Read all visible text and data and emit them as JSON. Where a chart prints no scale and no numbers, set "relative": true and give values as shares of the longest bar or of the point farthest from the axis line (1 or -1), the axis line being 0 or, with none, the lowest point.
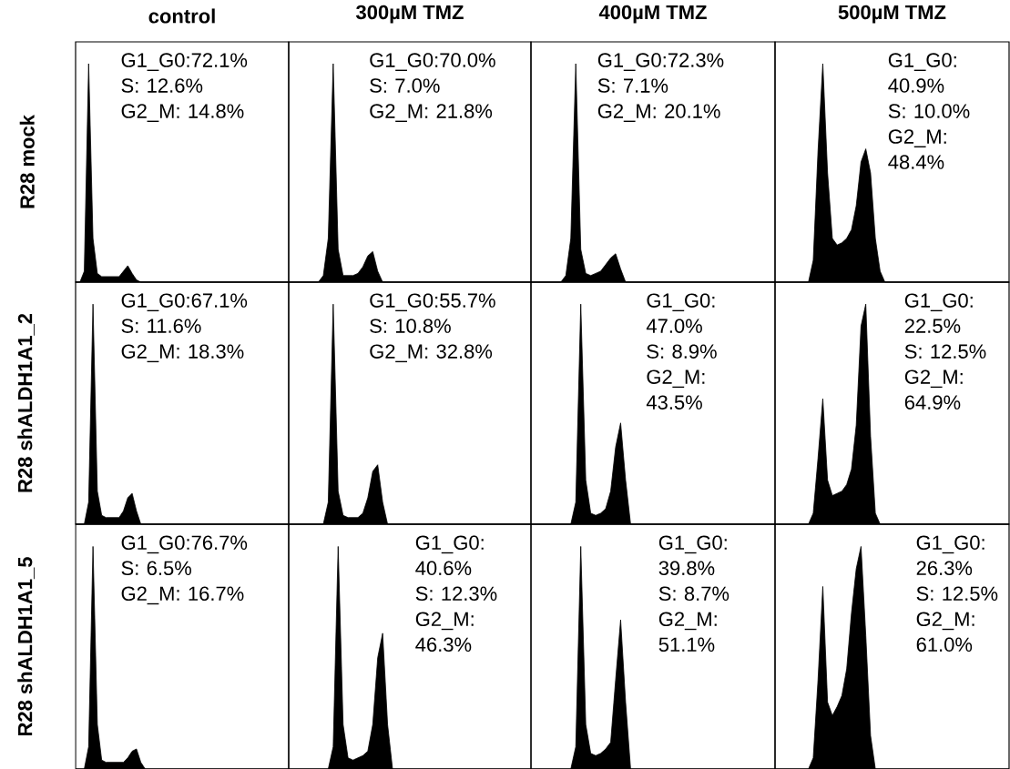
{
  "chart_data": [
    {
      "type": "area",
      "relative": true,
      "title": "control",
      "ylabel": "R28 mock",
      "color": "#000000",
      "categories": [
        null,
        null,
        null,
        null,
        null,
        null,
        null,
        null,
        null,
        null,
        null,
        null,
        null,
        null,
        null,
        null,
        null,
        null,
        null,
        null,
        null,
        null,
        null,
        null,
        null,
        null,
        null,
        null,
        null,
        null,
        null,
        null,
        null,
        null,
        null,
        null,
        null,
        null,
        null,
        null,
        null,
        null,
        null,
        null,
        null,
        null,
        null,
        null,
        null,
        null
      ],
      "values": [
        0,
        0,
        0.05,
        1,
        0.2,
        0.04,
        0.025,
        0.025,
        0.025,
        0.025,
        0.025,
        0.05,
        0.075,
        0.04,
        0.01,
        0,
        0,
        0,
        0,
        0,
        0,
        0,
        0,
        0,
        0,
        0,
        0,
        0,
        0,
        0,
        0,
        0,
        0,
        0,
        0,
        0,
        0,
        0,
        0,
        0,
        0,
        0,
        0,
        0,
        0,
        0,
        0,
        0,
        0,
        0
      ],
      "annotations": [
        "G1_G0:72.1%",
        "S: 12.6%",
        "G2_M: 14.8%"
      ]
    },
    {
      "type": "area",
      "relative": true,
      "title": "300µM TMZ",
      "color": "#000000",
      "categories": [
        null,
        null,
        null,
        null,
        null,
        null,
        null,
        null,
        null,
        null,
        null,
        null,
        null,
        null,
        null,
        null,
        null,
        null,
        null,
        null,
        null,
        null,
        null,
        null,
        null,
        null,
        null,
        null,
        null,
        null,
        null,
        null,
        null,
        null,
        null,
        null,
        null,
        null,
        null,
        null,
        null,
        null,
        null,
        null,
        null,
        null,
        null,
        null,
        null,
        null
      ],
      "values": [
        0,
        0,
        0,
        0,
        0,
        0,
        0,
        0.03,
        0.2,
        1,
        0.15,
        0.03,
        0.03,
        0.03,
        0.04,
        0.07,
        0.12,
        0.14,
        0.05,
        0,
        0,
        0,
        0,
        0,
        0,
        0,
        0,
        0,
        0,
        0,
        0,
        0,
        0,
        0,
        0,
        0,
        0,
        0,
        0,
        0,
        0,
        0,
        0,
        0,
        0,
        0,
        0,
        0,
        0,
        0
      ],
      "annotations": [
        "G1_G0:70.0%",
        "S: 7.0%",
        "G2_M: 21.8%"
      ]
    },
    {
      "type": "area",
      "relative": true,
      "title": "400µM TMZ",
      "color": "#000000",
      "categories": [
        null,
        null,
        null,
        null,
        null,
        null,
        null,
        null,
        null,
        null,
        null,
        null,
        null,
        null,
        null,
        null,
        null,
        null,
        null,
        null,
        null,
        null,
        null,
        null,
        null,
        null,
        null,
        null,
        null,
        null,
        null,
        null,
        null,
        null,
        null,
        null,
        null,
        null,
        null,
        null,
        null,
        null,
        null,
        null,
        null,
        null,
        null,
        null,
        null,
        null
      ],
      "values": [
        0,
        0,
        0,
        0,
        0,
        0,
        0,
        0.03,
        0.2,
        1,
        0.15,
        0.04,
        0.03,
        0.04,
        0.05,
        0.08,
        0.11,
        0.13,
        0.06,
        0,
        0,
        0,
        0,
        0,
        0,
        0,
        0,
        0,
        0,
        0,
        0,
        0,
        0,
        0,
        0,
        0,
        0,
        0,
        0,
        0,
        0,
        0,
        0,
        0,
        0,
        0,
        0,
        0,
        0,
        0
      ],
      "annotations": [
        "G1_G0:72.3%",
        "S: 7.1%",
        "G2_M: 20.1%"
      ]
    },
    {
      "type": "area",
      "relative": true,
      "title": "500µM TMZ",
      "color": "#000000",
      "categories": [
        null,
        null,
        null,
        null,
        null,
        null,
        null,
        null,
        null,
        null,
        null,
        null,
        null,
        null,
        null,
        null,
        null,
        null,
        null,
        null,
        null,
        null,
        null,
        null,
        null,
        null,
        null,
        null,
        null,
        null,
        null,
        null,
        null,
        null,
        null,
        null,
        null,
        null,
        null,
        null,
        null,
        null,
        null,
        null,
        null,
        null,
        null,
        null,
        null,
        null
      ],
      "values": [
        0,
        0,
        0,
        0,
        0,
        0,
        0,
        0,
        0.1,
        0.6,
        1,
        0.5,
        0.2,
        0.17,
        0.18,
        0.2,
        0.24,
        0.35,
        0.55,
        0.61,
        0.5,
        0.2,
        0.05,
        0,
        0,
        0,
        0,
        0,
        0,
        0,
        0,
        0,
        0,
        0,
        0,
        0,
        0,
        0,
        0,
        0,
        0,
        0,
        0,
        0,
        0,
        0,
        0,
        0,
        0,
        0
      ],
      "annotations": [
        "G1_G0: 40.9%",
        "S: 10.0%",
        "G2_M: 48.4%"
      ]
    },
    {
      "type": "area",
      "relative": true,
      "ylabel": "R28 shALDH1A1_2",
      "color": "#000000",
      "categories": [
        null,
        null,
        null,
        null,
        null,
        null,
        null,
        null,
        null,
        null,
        null,
        null,
        null,
        null,
        null,
        null,
        null,
        null,
        null,
        null,
        null,
        null,
        null,
        null,
        null,
        null,
        null,
        null,
        null,
        null,
        null,
        null,
        null,
        null,
        null,
        null,
        null,
        null,
        null,
        null,
        null,
        null,
        null,
        null,
        null,
        null,
        null,
        null,
        null,
        null
      ],
      "values": [
        0,
        0,
        0,
        0.1,
        1,
        0.15,
        0.04,
        0.03,
        0.03,
        0.03,
        0.03,
        0.06,
        0.12,
        0.14,
        0.06,
        0,
        0,
        0,
        0,
        0,
        0,
        0,
        0,
        0,
        0,
        0,
        0,
        0,
        0,
        0,
        0,
        0,
        0,
        0,
        0,
        0,
        0,
        0,
        0,
        0,
        0,
        0,
        0,
        0,
        0,
        0,
        0,
        0,
        0,
        0
      ],
      "annotations": [
        "G1_G0:67.1%",
        "S: 11.6%",
        "G2_M: 18.3%"
      ]
    },
    {
      "type": "area",
      "relative": true,
      "color": "#000000",
      "categories": [
        null,
        null,
        null,
        null,
        null,
        null,
        null,
        null,
        null,
        null,
        null,
        null,
        null,
        null,
        null,
        null,
        null,
        null,
        null,
        null,
        null,
        null,
        null,
        null,
        null,
        null,
        null,
        null,
        null,
        null,
        null,
        null,
        null,
        null,
        null,
        null,
        null,
        null,
        null,
        null,
        null,
        null,
        null,
        null,
        null,
        null,
        null,
        null,
        null,
        null
      ],
      "values": [
        0,
        0,
        0,
        0,
        0,
        0,
        0,
        0,
        0.1,
        1,
        0.15,
        0.04,
        0.03,
        0.03,
        0.03,
        0.05,
        0.12,
        0.24,
        0.27,
        0.1,
        0,
        0,
        0,
        0,
        0,
        0,
        0,
        0,
        0,
        0,
        0,
        0,
        0,
        0,
        0,
        0,
        0,
        0,
        0,
        0,
        0,
        0,
        0,
        0,
        0,
        0,
        0,
        0,
        0,
        0
      ],
      "annotations": [
        "G1_G0:55.7%",
        "S: 10.8%",
        "G2_M: 32.8%"
      ]
    },
    {
      "type": "area",
      "relative": true,
      "color": "#000000",
      "categories": [
        null,
        null,
        null,
        null,
        null,
        null,
        null,
        null,
        null,
        null,
        null,
        null,
        null,
        null,
        null,
        null,
        null,
        null,
        null,
        null,
        null,
        null,
        null,
        null,
        null,
        null,
        null,
        null,
        null,
        null,
        null,
        null,
        null,
        null,
        null,
        null,
        null,
        null,
        null,
        null,
        null,
        null,
        null,
        null,
        null,
        null,
        null,
        null,
        null,
        null
      ],
      "values": [
        0,
        0,
        0,
        0,
        0,
        0,
        0,
        0,
        0,
        0.1,
        1,
        0.2,
        0.05,
        0.04,
        0.05,
        0.07,
        0.15,
        0.35,
        0.46,
        0.2,
        0,
        0,
        0,
        0,
        0,
        0,
        0,
        0,
        0,
        0,
        0,
        0,
        0,
        0,
        0,
        0,
        0,
        0,
        0,
        0,
        0,
        0,
        0,
        0,
        0,
        0,
        0,
        0,
        0,
        0
      ],
      "annotations": [
        "G1_G0: 47.0%",
        "S: 8.9%",
        "G2_M: 43.5%"
      ]
    },
    {
      "type": "area",
      "relative": true,
      "color": "#000000",
      "categories": [
        null,
        null,
        null,
        null,
        null,
        null,
        null,
        null,
        null,
        null,
        null,
        null,
        null,
        null,
        null,
        null,
        null,
        null,
        null,
        null,
        null,
        null,
        null,
        null,
        null,
        null,
        null,
        null,
        null,
        null,
        null,
        null,
        null,
        null,
        null,
        null,
        null,
        null,
        null,
        null,
        null,
        null,
        null,
        null,
        null,
        null,
        null,
        null,
        null,
        null
      ],
      "values": [
        0,
        0,
        0,
        0,
        0,
        0,
        0,
        0,
        0.05,
        0.3,
        0.57,
        0.2,
        0.13,
        0.14,
        0.15,
        0.18,
        0.25,
        0.45,
        0.9,
        1,
        0.4,
        0.05,
        0,
        0,
        0,
        0,
        0,
        0,
        0,
        0,
        0,
        0,
        0,
        0,
        0,
        0,
        0,
        0,
        0,
        0,
        0,
        0,
        0,
        0,
        0,
        0,
        0,
        0,
        0,
        0
      ],
      "annotations": [
        "G1_G0: 22.5%",
        "S: 12.5%",
        "G2_M: 64.9%"
      ]
    },
    {
      "type": "area",
      "relative": true,
      "ylabel": "R28 shALDH1A1_5",
      "color": "#000000",
      "categories": [
        null,
        null,
        null,
        null,
        null,
        null,
        null,
        null,
        null,
        null,
        null,
        null,
        null,
        null,
        null,
        null,
        null,
        null,
        null,
        null,
        null,
        null,
        null,
        null,
        null,
        null,
        null,
        null,
        null,
        null,
        null,
        null,
        null,
        null,
        null,
        null,
        null,
        null,
        null,
        null,
        null,
        null,
        null,
        null,
        null,
        null,
        null,
        null,
        null,
        null
      ],
      "values": [
        0,
        0,
        0,
        0.1,
        1,
        0.2,
        0.04,
        0.03,
        0.03,
        0.03,
        0.03,
        0.03,
        0.05,
        0.08,
        0.09,
        0.03,
        0,
        0,
        0,
        0,
        0,
        0,
        0,
        0,
        0,
        0,
        0,
        0,
        0,
        0,
        0,
        0,
        0,
        0,
        0,
        0,
        0,
        0,
        0,
        0,
        0,
        0,
        0,
        0,
        0,
        0,
        0,
        0,
        0,
        0
      ],
      "annotations": [
        "G1_G0:76.7%",
        "S: 6.5%",
        "G2_M: 16.7%"
      ]
    },
    {
      "type": "area",
      "relative": true,
      "color": "#000000",
      "categories": [
        null,
        null,
        null,
        null,
        null,
        null,
        null,
        null,
        null,
        null,
        null,
        null,
        null,
        null,
        null,
        null,
        null,
        null,
        null,
        null,
        null,
        null,
        null,
        null,
        null,
        null,
        null,
        null,
        null,
        null,
        null,
        null,
        null,
        null,
        null,
        null,
        null,
        null,
        null,
        null,
        null,
        null,
        null,
        null,
        null,
        null,
        null,
        null,
        null,
        null
      ],
      "values": [
        0,
        0,
        0,
        0,
        0,
        0,
        0,
        0,
        0,
        0.1,
        1,
        0.2,
        0.05,
        0.04,
        0.05,
        0.06,
        0.08,
        0.2,
        0.5,
        0.61,
        0.2,
        0,
        0,
        0,
        0,
        0,
        0,
        0,
        0,
        0,
        0,
        0,
        0,
        0,
        0,
        0,
        0,
        0,
        0,
        0,
        0,
        0,
        0,
        0,
        0,
        0,
        0,
        0,
        0,
        0
      ],
      "annotations": [
        "G1_G0: 40.6%",
        "S: 12.3%",
        "G2_M: 46.3%"
      ]
    },
    {
      "type": "area",
      "relative": true,
      "color": "#000000",
      "categories": [
        null,
        null,
        null,
        null,
        null,
        null,
        null,
        null,
        null,
        null,
        null,
        null,
        null,
        null,
        null,
        null,
        null,
        null,
        null,
        null,
        null,
        null,
        null,
        null,
        null,
        null,
        null,
        null,
        null,
        null,
        null,
        null,
        null,
        null,
        null,
        null,
        null,
        null,
        null,
        null,
        null,
        null,
        null,
        null,
        null,
        null,
        null,
        null,
        null,
        null
      ],
      "values": [
        0,
        0,
        0,
        0,
        0,
        0,
        0,
        0,
        0,
        0.1,
        1,
        0.2,
        0.07,
        0.06,
        0.07,
        0.09,
        0.12,
        0.4,
        0.67,
        0.3,
        0,
        0,
        0,
        0,
        0,
        0,
        0,
        0,
        0,
        0,
        0,
        0,
        0,
        0,
        0,
        0,
        0,
        0,
        0,
        0,
        0,
        0,
        0,
        0,
        0,
        0,
        0,
        0,
        0,
        0
      ],
      "annotations": [
        "G1_G0: 39.8%",
        "S: 8.7%",
        "G2_M: 51.1%"
      ]
    },
    {
      "type": "area",
      "relative": true,
      "color": "#000000",
      "categories": [
        null,
        null,
        null,
        null,
        null,
        null,
        null,
        null,
        null,
        null,
        null,
        null,
        null,
        null,
        null,
        null,
        null,
        null,
        null,
        null,
        null,
        null,
        null,
        null,
        null,
        null,
        null,
        null,
        null,
        null,
        null,
        null,
        null,
        null,
        null,
        null,
        null,
        null,
        null,
        null,
        null,
        null,
        null,
        null,
        null,
        null,
        null,
        null,
        null,
        null
      ],
      "values": [
        0,
        0,
        0,
        0,
        0,
        0,
        0,
        0,
        0.05,
        0.4,
        0.82,
        0.3,
        0.24,
        0.28,
        0.33,
        0.45,
        0.7,
        0.9,
        1,
        0.6,
        0.15,
        0,
        0,
        0,
        0,
        0,
        0,
        0,
        0,
        0,
        0,
        0,
        0,
        0,
        0,
        0,
        0,
        0,
        0,
        0,
        0,
        0,
        0,
        0,
        0,
        0,
        0,
        0,
        0,
        0
      ],
      "annotations": [
        "G1_G0: 26.3%",
        "S: 12.5%",
        "G2_M: 61.0%"
      ]
    }
  ]
}
